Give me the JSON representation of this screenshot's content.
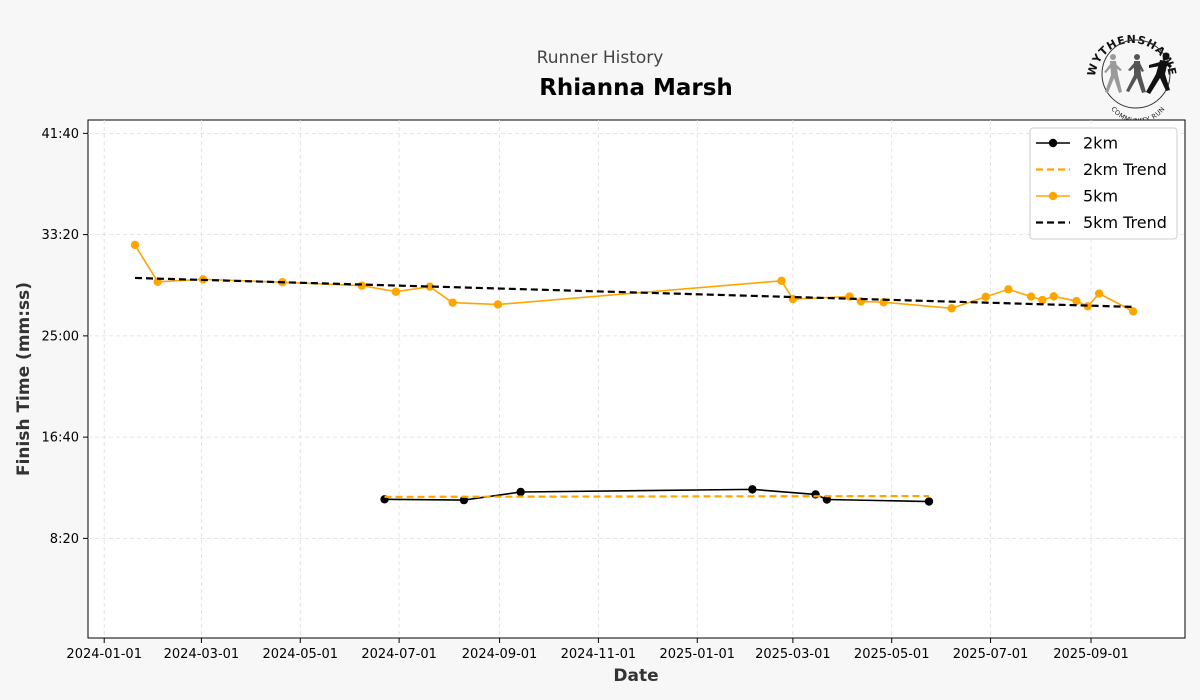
{
  "header": {
    "subtitle": "Runner History",
    "title": "Rhianna Marsh"
  },
  "logo": {
    "top_text": "WYTHENSHAWE",
    "bottom_text": "COMMUNITY RUN",
    "icon": "runners-logo-icon"
  },
  "chart_data": {
    "type": "line",
    "title": "Rhianna Marsh",
    "subtitle": "Runner History",
    "xlabel": "Date",
    "ylabel": "Finish Time (mm:ss)",
    "x_ticks": [
      "2024-01-01",
      "2024-03-01",
      "2024-05-01",
      "2024-07-01",
      "2024-09-01",
      "2024-11-01",
      "2025-01-01",
      "2025-03-01",
      "2025-05-01",
      "2025-07-01",
      "2025-09-01"
    ],
    "y_ticks": [
      "8:20",
      "16:40",
      "25:00",
      "33:20",
      "41:40"
    ],
    "xlim": [
      "2023-12-22",
      "2025-10-29"
    ],
    "ylim": [
      "0:08",
      "42:46"
    ],
    "grid": true,
    "legend_position": "top-right",
    "series": [
      {
        "name": "2km",
        "style": "solid-marker",
        "color": "#000000",
        "points": [
          {
            "x": "2024-06-22",
            "y": "11:33"
          },
          {
            "x": "2024-08-10",
            "y": "11:29"
          },
          {
            "x": "2024-09-14",
            "y": "12:09"
          },
          {
            "x": "2025-02-04",
            "y": "12:22"
          },
          {
            "x": "2025-03-15",
            "y": "11:57"
          },
          {
            "x": "2025-03-22",
            "y": "11:32"
          },
          {
            "x": "2025-05-24",
            "y": "11:22"
          }
        ]
      },
      {
        "name": "2km Trend",
        "style": "dashed",
        "color": "#ffa500",
        "points": [
          {
            "x": "2024-06-22",
            "y": "11:45"
          },
          {
            "x": "2025-05-24",
            "y": "11:49"
          }
        ]
      },
      {
        "name": "5km",
        "style": "solid-marker",
        "color": "#ffa500",
        "points": [
          {
            "x": "2024-01-20",
            "y": "32:29"
          },
          {
            "x": "2024-02-03",
            "y": "29:27"
          },
          {
            "x": "2024-03-02",
            "y": "29:39"
          },
          {
            "x": "2024-04-20",
            "y": "29:25"
          },
          {
            "x": "2024-06-08",
            "y": "29:08"
          },
          {
            "x": "2024-06-29",
            "y": "28:38"
          },
          {
            "x": "2024-07-20",
            "y": "29:03"
          },
          {
            "x": "2024-08-03",
            "y": "27:44"
          },
          {
            "x": "2024-08-31",
            "y": "27:35"
          },
          {
            "x": "2025-02-22",
            "y": "29:32"
          },
          {
            "x": "2025-03-01",
            "y": "28:02"
          },
          {
            "x": "2025-04-05",
            "y": "28:14"
          },
          {
            "x": "2025-04-12",
            "y": "27:50"
          },
          {
            "x": "2025-04-26",
            "y": "27:46"
          },
          {
            "x": "2025-06-07",
            "y": "27:16"
          },
          {
            "x": "2025-06-28",
            "y": "28:13"
          },
          {
            "x": "2025-07-12",
            "y": "28:50"
          },
          {
            "x": "2025-07-26",
            "y": "28:14"
          },
          {
            "x": "2025-08-02",
            "y": "27:57"
          },
          {
            "x": "2025-08-09",
            "y": "28:15"
          },
          {
            "x": "2025-08-23",
            "y": "27:52"
          },
          {
            "x": "2025-08-30",
            "y": "27:26"
          },
          {
            "x": "2025-09-06",
            "y": "28:29"
          },
          {
            "x": "2025-09-27",
            "y": "27:01"
          }
        ]
      },
      {
        "name": "5km Trend",
        "style": "dashed",
        "color": "#000000",
        "points": [
          {
            "x": "2024-01-20",
            "y": "29:46"
          },
          {
            "x": "2025-09-27",
            "y": "27:23"
          }
        ]
      }
    ]
  }
}
